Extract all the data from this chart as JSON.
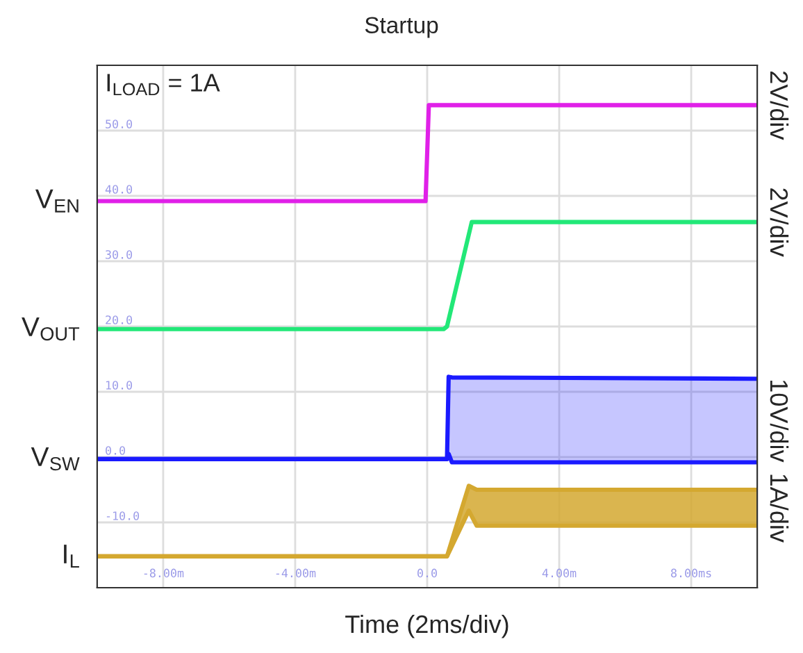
{
  "chart_data": {
    "type": "line",
    "title": "Startup",
    "xlabel": "Time (2ms/div)",
    "xlim": [
      -10,
      10
    ],
    "ylim": [
      -20,
      60
    ],
    "xticks": [
      {
        "value": -8,
        "label": "-8.00m"
      },
      {
        "value": -4,
        "label": "-4.00m"
      },
      {
        "value": 0,
        "label": "0.0"
      },
      {
        "value": 4,
        "label": "4.00m"
      },
      {
        "value": 8,
        "label": "8.00ms"
      }
    ],
    "yticks": [
      {
        "value": -10,
        "label": "-10.0"
      },
      {
        "value": 0,
        "label": "0.0"
      },
      {
        "value": 10,
        "label": "10.0"
      },
      {
        "value": 20,
        "label": "20.0"
      },
      {
        "value": 30,
        "label": "30.0"
      },
      {
        "value": 40,
        "label": "40.0"
      },
      {
        "value": 50,
        "label": "50.0"
      }
    ],
    "grid": true,
    "legend": false,
    "marker": "none",
    "line_style": "solid",
    "annotations": [
      "I$_{LOAD}$ = 1A",
      "2V/div",
      "2V/div",
      "10V/div",
      "1A/div"
    ],
    "series": [
      {
        "name": "V$_{EN}$",
        "color": "#e020e8",
        "x": [
          -10,
          -0.05,
          0.05,
          10
        ],
        "values": [
          39.2,
          39.2,
          53.9,
          53.9
        ]
      },
      {
        "name": "V$_{OUT}$",
        "color": "#22e878",
        "x": [
          -10,
          0.5,
          0.6,
          1.35,
          10
        ],
        "values": [
          19.6,
          19.6,
          20.0,
          36.0,
          36.0
        ]
      },
      {
        "name": "V$_{SW}$",
        "color": "#1a1aff",
        "x": [
          -10,
          0.6,
          0.65,
          0.75,
          10
        ],
        "values": [
          -0.3,
          -0.3,
          0.5,
          -0.8,
          -0.8
        ],
        "lower": [
          -0.3,
          -0.3,
          0.5,
          -0.8,
          -0.8
        ],
        "upper": [
          -0.3,
          -0.3,
          12.3,
          12.2,
          12.0
        ]
      },
      {
        "name": "I$_{L}$",
        "color": "#d4a830",
        "x": [
          -10,
          0.6,
          1.26,
          1.5,
          10
        ],
        "values": [
          -15.2,
          -15.2,
          -8.2,
          -10.5,
          -10.5
        ],
        "lower": [
          -15.2,
          -15.2,
          -8.2,
          -10.5,
          -10.5
        ],
        "upper": [
          -15.2,
          -15.2,
          -4.4,
          -5.0,
          -5.0
        ]
      }
    ]
  }
}
